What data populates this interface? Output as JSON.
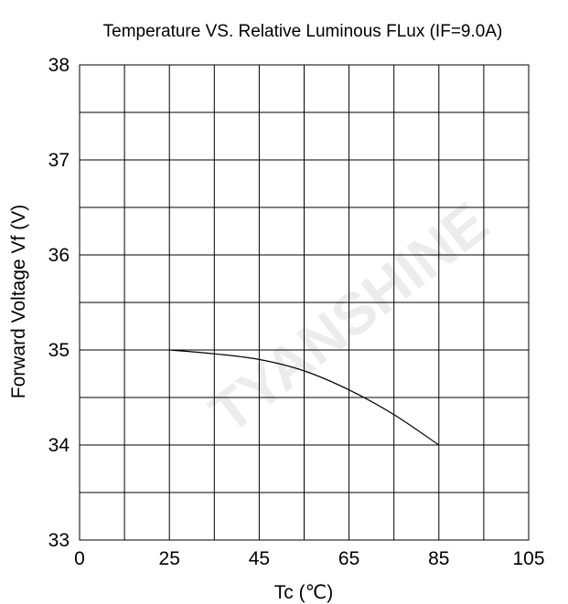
{
  "chart_data": {
    "type": "line",
    "title": "Temperature VS.  Relative Luminous FLux (IF=9.0A)",
    "xlabel": "Tc (℃)",
    "ylabel": "Forward  Voltage  Vf  (V)",
    "xlim": [
      0,
      105
    ],
    "ylim": [
      33,
      38
    ],
    "x_ticks": [
      0,
      25,
      45,
      65,
      85,
      105
    ],
    "x_tick_labels": [
      "0",
      "25",
      "45",
      "65",
      "85",
      "105"
    ],
    "y_ticks": [
      33,
      34,
      35,
      36,
      37,
      38
    ],
    "y_tick_labels": [
      "33",
      "34",
      "35",
      "36",
      "37",
      "38"
    ],
    "grid": true,
    "series": [
      {
        "x": [
          25,
          35,
          45,
          55,
          65,
          75,
          85
        ],
        "y": [
          35.0,
          34.96,
          34.9,
          34.78,
          34.58,
          34.32,
          34.0
        ]
      }
    ],
    "colors": {
      "line": "#000000",
      "grid": "#000000"
    },
    "watermark": "TYANSHINE"
  }
}
